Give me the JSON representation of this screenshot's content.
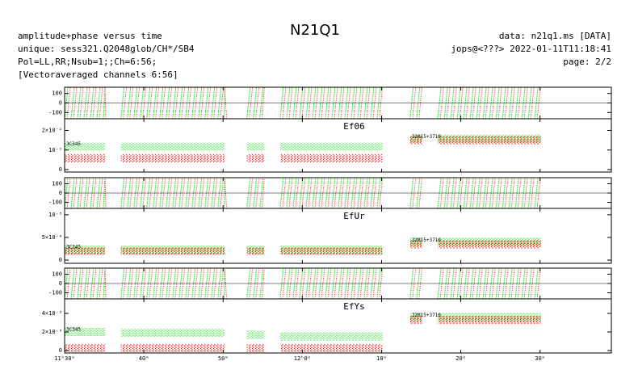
{
  "chart_data": {
    "type": "segments",
    "title": "N21Q1",
    "header_left": [
      "amplitude+phase versus time",
      "unique: sess321.Q2048glob/CH*/SB4",
      "Pol=LL,RR;Nsub=1;;Ch=6:56;",
      "[Vectoraveraged channels 6:56]"
    ],
    "header_right": [
      "data: n21q1.ms [DATA]",
      "jops@<???> 2022-01-11T11:18:41",
      "page: 2/2"
    ],
    "xlim": [
      0,
      69
    ],
    "xticks": [
      {
        "value": 0,
        "label": "11ʰ30ᵐ"
      },
      {
        "value": 10,
        "label": "40ᵐ"
      },
      {
        "value": 20,
        "label": "50ᵐ"
      },
      {
        "value": 30,
        "label": "12ʰ0ᵐ"
      },
      {
        "value": 40,
        "label": "10ᵐ"
      },
      {
        "value": 50,
        "label": "20ᵐ"
      },
      {
        "value": 60,
        "label": "30ᵐ"
      }
    ],
    "segments": [
      [
        0,
        5.1
      ],
      [
        7.1,
        20.2
      ],
      [
        23,
        25.2
      ],
      [
        27.2,
        40.1
      ],
      [
        43.6,
        45.1
      ],
      [
        47.1,
        60.1
      ]
    ],
    "panels": [
      {
        "type": "phase",
        "ylim": [
          -165,
          165
        ],
        "yticks": [
          100,
          0,
          -100
        ]
      },
      {
        "type": "amplitude",
        "label": "Ef06",
        "ylim": [
          -0.00125,
          0.026
        ],
        "yticks": [
          {
            "value": 0.02,
            "label": "2×10⁻²"
          },
          {
            "value": 0.01,
            "label": "10⁻²"
          },
          0
        ],
        "annotations": [
          "3C345",
          "J2015+3710"
        ],
        "series": [
          {
            "color": "#33dd33",
            "values": [
              0.0117,
              0.0117,
              0.0117,
              0.0117,
              0.0158,
              0.0158
            ]
          },
          {
            "color": "#cc2222",
            "values": [
              0.0058,
              0.0058,
              0.0058,
              0.0058,
              0.015,
              0.015
            ]
          }
        ]
      },
      {
        "type": "phase",
        "ylim": [
          -165,
          165
        ],
        "yticks": [
          100,
          0,
          -100
        ]
      },
      {
        "type": "amplitude",
        "label": "EfUr",
        "ylim": [
          -7e-05,
          0.00114
        ],
        "yticks": [
          {
            "value": 0.001,
            "label": "10⁻³"
          },
          {
            "value": 0.0005,
            "label": "5×10⁻⁴"
          },
          0
        ],
        "annotations": [
          "3C345",
          "J2015+3710"
        ],
        "series": [
          {
            "color": "#33dd33",
            "values": [
              0.00023,
              0.00023,
              0.00023,
              0.00023,
              0.0004,
              0.0004
            ]
          },
          {
            "color": "#cc2222",
            "values": [
              0.0002,
              0.0002,
              0.0002,
              0.0002,
              0.00035,
              0.00035
            ]
          }
        ]
      },
      {
        "type": "phase",
        "ylim": [
          -165,
          165
        ],
        "yticks": [
          100,
          0,
          -100
        ]
      },
      {
        "type": "amplitude",
        "label": "EfYs",
        "ylim": [
          -0.00026,
          0.00557
        ],
        "yticks": [
          {
            "value": 0.004,
            "label": "4×10⁻³"
          },
          {
            "value": 0.002,
            "label": "2×10⁻³"
          },
          0
        ],
        "annotations": [
          "3C345",
          "J2015+3710"
        ],
        "series": [
          {
            "color": "#33dd33",
            "values": [
              0.002,
              0.0019,
              0.0017,
              0.0015,
              0.0036,
              0.0036
            ]
          },
          {
            "color": "#cc2222",
            "values": [
              0.00026,
              0.00026,
              0.00026,
              0.00026,
              0.0033,
              0.0033
            ]
          }
        ]
      }
    ]
  }
}
